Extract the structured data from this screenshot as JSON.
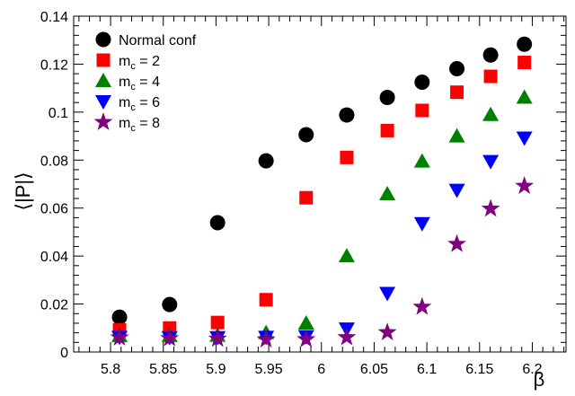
{
  "chart_data": {
    "type": "scatter",
    "title": "",
    "xlabel": "β",
    "ylabel": "⟨|P|⟩",
    "xlim": [
      5.765,
      6.232
    ],
    "ylim": [
      0,
      0.14
    ],
    "xticks": [
      "5.8",
      "5.85",
      "5.9",
      "5.95",
      "6",
      "6.05",
      "6.1",
      "6.15",
      "6.2"
    ],
    "yticks": [
      "0",
      "0.02",
      "0.04",
      "0.06",
      "0.08",
      "0.1",
      "0.12",
      "0.14"
    ],
    "legend_position": "top-left",
    "series": [
      {
        "name": "Normal conf",
        "label_main": "Normal conf",
        "label_sub": "",
        "label_tail": "",
        "marker": "circle",
        "color": "#000000",
        "x": [
          5.8085,
          5.856,
          5.9015,
          5.9475,
          5.9855,
          6.024,
          6.0625,
          6.0955,
          6.1285,
          6.1605,
          6.1925
        ],
        "y": [
          0.0145,
          0.0198,
          0.0539,
          0.0797,
          0.0906,
          0.0988,
          0.1061,
          0.1125,
          0.1181,
          0.1238,
          0.1283
        ]
      },
      {
        "name": "mc = 2",
        "label_main": "m",
        "label_sub": "c",
        "label_tail": " = 2",
        "marker": "square",
        "color": "#ff0000",
        "x": [
          5.8085,
          5.856,
          5.9015,
          5.9475,
          5.9855,
          6.024,
          6.0625,
          6.0955,
          6.1285,
          6.1605,
          6.1925
        ],
        "y": [
          0.0092,
          0.01,
          0.0123,
          0.0218,
          0.0643,
          0.0811,
          0.0923,
          0.1007,
          0.1083,
          0.1149,
          0.1207
        ]
      },
      {
        "name": "mc = 4",
        "label_main": "m",
        "label_sub": "c",
        "label_tail": " = 4",
        "marker": "triangle-up",
        "color": "#008000",
        "x": [
          5.8085,
          5.856,
          5.9015,
          5.9475,
          5.9855,
          6.024,
          6.0625,
          6.0955,
          6.1285,
          6.1605,
          6.1925
        ],
        "y": [
          0.0068,
          0.0068,
          0.0069,
          0.008,
          0.012,
          0.04,
          0.0659,
          0.0795,
          0.09,
          0.0989,
          0.1061
        ]
      },
      {
        "name": "mc = 6",
        "label_main": "m",
        "label_sub": "c",
        "label_tail": " = 6",
        "marker": "triangle-down",
        "color": "#0000ff",
        "x": [
          5.8085,
          5.856,
          5.9015,
          5.9475,
          5.9855,
          6.024,
          6.0625,
          6.0955,
          6.1285,
          6.1605,
          6.1925
        ],
        "y": [
          0.0062,
          0.0061,
          0.0061,
          0.0062,
          0.0065,
          0.0097,
          0.0245,
          0.0536,
          0.0675,
          0.0795,
          0.0893
        ]
      },
      {
        "name": "mc = 8",
        "label_main": "m",
        "label_sub": "c",
        "label_tail": " = 8",
        "marker": "star",
        "color": "#800080",
        "x": [
          5.8085,
          5.856,
          5.9015,
          5.9475,
          5.9855,
          6.024,
          6.0625,
          6.0955,
          6.1285,
          6.1605,
          6.1925
        ],
        "y": [
          0.006,
          0.0057,
          0.0055,
          0.0052,
          0.0053,
          0.0061,
          0.0082,
          0.0188,
          0.045,
          0.0597,
          0.0692
        ]
      }
    ]
  }
}
